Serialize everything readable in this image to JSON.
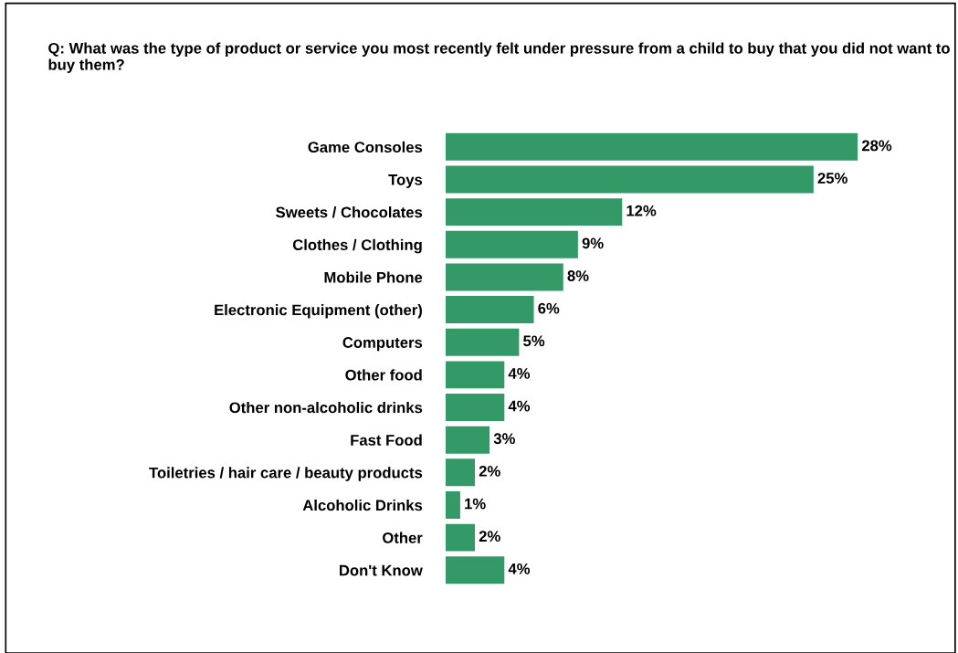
{
  "chart_data": {
    "type": "bar",
    "orientation": "horizontal",
    "title": "Q: What was the type of product or service you most recently felt under pressure from a child to buy that you did not want to buy them?",
    "categories": [
      "Game Consoles",
      "Toys",
      "Sweets / Chocolates",
      "Clothes / Clothing",
      "Mobile Phone",
      "Electronic Equipment (other)",
      "Computers",
      "Other food",
      "Other non-alcoholic drinks",
      "Fast Food",
      "Toiletries / hair care / beauty products",
      "Alcoholic Drinks",
      "Other",
      "Don't Know"
    ],
    "values": [
      28,
      25,
      12,
      9,
      8,
      6,
      5,
      4,
      4,
      3,
      2,
      1,
      2,
      4
    ],
    "value_labels": [
      "28%",
      "25%",
      "12%",
      "9%",
      "8%",
      "6%",
      "5%",
      "4%",
      "4%",
      "3%",
      "2%",
      "1%",
      "2%",
      "4%"
    ],
    "color": "#339966",
    "grid": false,
    "legend": false,
    "tick_labels": "y"
  }
}
